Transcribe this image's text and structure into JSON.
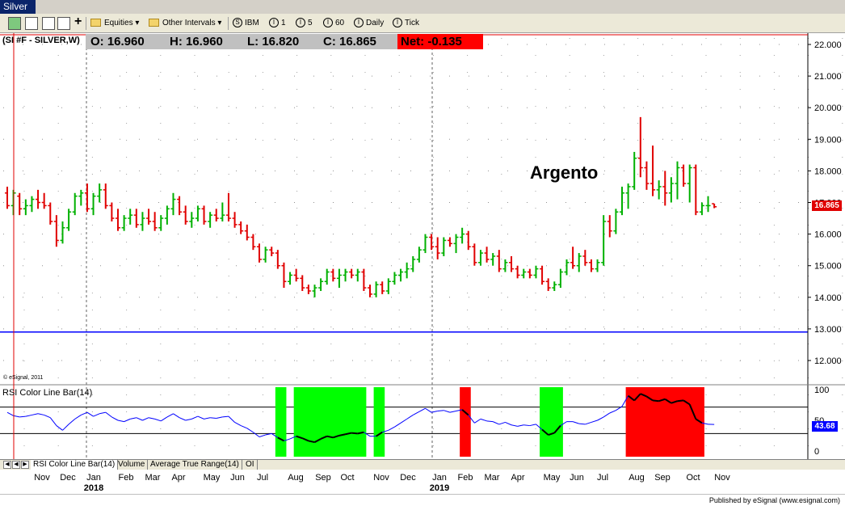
{
  "window": {
    "title": "Silver"
  },
  "toolbar": {
    "equities_label": "Equities",
    "other_intervals_label": "Other Intervals",
    "symbol_label": "IBM",
    "intervals": [
      "1",
      "5",
      "60",
      "Daily",
      "Tick"
    ]
  },
  "header": {
    "symbol": "(SI #F - SILVER,W)",
    "open": "O:  16.960",
    "high": "H:  16.960",
    "low": "L:  16.820",
    "close": "C:  16.865",
    "net": "Net:  -0.135"
  },
  "chart": {
    "annotation": "Argento",
    "copyright": "© eSignal, 2011",
    "last_price_label": "16.865",
    "y_ticks": [
      "22.000",
      "21.000",
      "20.000",
      "19.000",
      "18.000",
      "17.000",
      "16.000",
      "15.000",
      "14.000",
      "13.000",
      "12.000"
    ],
    "rsi_title": "RSI Color Line Bar(14)",
    "rsi_ticks": [
      "100",
      "50",
      "0"
    ],
    "rsi_value_label": "43.68",
    "colors": {
      "up": "#00b000",
      "down": "#e00000",
      "green_zone": "#00ff00",
      "red_zone": "#ff0000",
      "rsi_line": "#0000ff"
    }
  },
  "chart_data": [
    {
      "type": "ohlc",
      "title": "(SI #F - SILVER,W)",
      "ylim": [
        11.5,
        22.3
      ],
      "reference_line": 12.9,
      "bars": [
        [
          17.3,
          17.5,
          16.8,
          16.9
        ],
        [
          16.9,
          17.4,
          16.6,
          17.3
        ],
        [
          17.2,
          17.3,
          16.6,
          16.8
        ],
        [
          16.8,
          17.1,
          16.6,
          16.9
        ],
        [
          16.9,
          17.2,
          16.7,
          17.1
        ],
        [
          17.1,
          17.4,
          16.8,
          17.0
        ],
        [
          17.0,
          17.3,
          16.8,
          16.9
        ],
        [
          16.9,
          17.0,
          16.3,
          16.4
        ],
        [
          16.4,
          16.6,
          15.6,
          15.8
        ],
        [
          15.8,
          16.4,
          15.7,
          16.2
        ],
        [
          16.2,
          16.8,
          16.1,
          16.7
        ],
        [
          16.7,
          17.3,
          16.6,
          17.2
        ],
        [
          17.2,
          17.4,
          16.9,
          17.3
        ],
        [
          17.3,
          17.6,
          16.7,
          16.8
        ],
        [
          16.8,
          17.3,
          16.6,
          17.2
        ],
        [
          17.2,
          17.6,
          17.0,
          17.4
        ],
        [
          17.4,
          17.6,
          16.8,
          16.9
        ],
        [
          16.9,
          17.0,
          16.4,
          16.5
        ],
        [
          16.5,
          16.8,
          16.1,
          16.2
        ],
        [
          16.2,
          16.6,
          16.1,
          16.5
        ],
        [
          16.5,
          16.8,
          16.3,
          16.6
        ],
        [
          16.6,
          16.8,
          16.2,
          16.3
        ],
        [
          16.3,
          16.7,
          16.1,
          16.5
        ],
        [
          16.5,
          16.8,
          16.3,
          16.4
        ],
        [
          16.4,
          16.7,
          16.1,
          16.2
        ],
        [
          16.2,
          16.6,
          16.1,
          16.5
        ],
        [
          16.5,
          16.9,
          16.3,
          16.8
        ],
        [
          16.8,
          17.3,
          16.6,
          17.1
        ],
        [
          17.1,
          17.2,
          16.6,
          16.7
        ],
        [
          16.7,
          16.9,
          16.3,
          16.4
        ],
        [
          16.4,
          16.7,
          16.2,
          16.5
        ],
        [
          16.5,
          16.9,
          16.4,
          16.8
        ],
        [
          16.8,
          16.9,
          16.3,
          16.4
        ],
        [
          16.4,
          16.7,
          16.2,
          16.6
        ],
        [
          16.6,
          16.8,
          16.4,
          16.5
        ],
        [
          16.5,
          17.0,
          16.4,
          16.6
        ],
        [
          16.6,
          17.3,
          16.4,
          16.5
        ],
        [
          16.5,
          16.7,
          16.2,
          16.3
        ],
        [
          16.3,
          16.4,
          16.0,
          16.1
        ],
        [
          16.1,
          16.3,
          15.8,
          15.9
        ],
        [
          15.9,
          16.0,
          15.5,
          15.6
        ],
        [
          15.6,
          15.7,
          15.1,
          15.2
        ],
        [
          15.2,
          15.6,
          15.1,
          15.5
        ],
        [
          15.5,
          15.6,
          15.3,
          15.4
        ],
        [
          15.4,
          15.5,
          14.9,
          15.0
        ],
        [
          15.0,
          15.1,
          14.3,
          14.5
        ],
        [
          14.5,
          14.8,
          14.4,
          14.7
        ],
        [
          14.7,
          14.9,
          14.5,
          14.6
        ],
        [
          14.6,
          14.7,
          14.2,
          14.3
        ],
        [
          14.3,
          14.4,
          14.1,
          14.2
        ],
        [
          14.2,
          14.4,
          14.0,
          14.3
        ],
        [
          14.3,
          14.6,
          14.2,
          14.5
        ],
        [
          14.5,
          14.9,
          14.4,
          14.8
        ],
        [
          14.8,
          14.9,
          14.5,
          14.6
        ],
        [
          14.6,
          14.9,
          14.3,
          14.7
        ],
        [
          14.7,
          14.9,
          14.5,
          14.8
        ],
        [
          14.8,
          14.9,
          14.6,
          14.7
        ],
        [
          14.7,
          14.9,
          14.5,
          14.8
        ],
        [
          14.8,
          14.9,
          14.2,
          14.3
        ],
        [
          14.3,
          14.4,
          14.0,
          14.1
        ],
        [
          14.1,
          14.5,
          14.0,
          14.4
        ],
        [
          14.4,
          14.5,
          14.1,
          14.2
        ],
        [
          14.2,
          14.6,
          14.1,
          14.5
        ],
        [
          14.5,
          14.8,
          14.4,
          14.7
        ],
        [
          14.7,
          14.9,
          14.5,
          14.8
        ],
        [
          14.8,
          15.1,
          14.6,
          14.9
        ],
        [
          14.9,
          15.3,
          14.8,
          15.2
        ],
        [
          15.2,
          15.6,
          15.1,
          15.5
        ],
        [
          15.5,
          16.0,
          15.4,
          15.9
        ],
        [
          15.9,
          16.0,
          15.5,
          15.6
        ],
        [
          15.6,
          15.9,
          15.2,
          15.4
        ],
        [
          15.4,
          15.9,
          15.3,
          15.8
        ],
        [
          15.8,
          15.9,
          15.6,
          15.7
        ],
        [
          15.7,
          16.0,
          15.4,
          15.9
        ],
        [
          15.9,
          16.2,
          15.7,
          16.0
        ],
        [
          16.0,
          16.1,
          15.5,
          15.6
        ],
        [
          15.6,
          15.7,
          15.0,
          15.1
        ],
        [
          15.1,
          15.5,
          15.0,
          15.4
        ],
        [
          15.4,
          15.6,
          15.1,
          15.2
        ],
        [
          15.2,
          15.4,
          15.0,
          15.3
        ],
        [
          15.3,
          15.5,
          14.8,
          14.9
        ],
        [
          14.9,
          15.2,
          14.8,
          15.1
        ],
        [
          15.1,
          15.3,
          14.8,
          14.9
        ],
        [
          14.9,
          15.0,
          14.6,
          14.7
        ],
        [
          14.7,
          14.9,
          14.6,
          14.8
        ],
        [
          14.8,
          14.9,
          14.6,
          14.7
        ],
        [
          14.7,
          15.0,
          14.6,
          14.9
        ],
        [
          14.9,
          15.0,
          14.4,
          14.5
        ],
        [
          14.5,
          14.6,
          14.2,
          14.3
        ],
        [
          14.3,
          14.5,
          14.2,
          14.4
        ],
        [
          14.4,
          14.9,
          14.3,
          14.8
        ],
        [
          14.8,
          15.2,
          14.7,
          15.1
        ],
        [
          15.1,
          15.6,
          14.9,
          15.0
        ],
        [
          15.0,
          15.4,
          14.8,
          15.3
        ],
        [
          15.3,
          15.5,
          15.0,
          15.1
        ],
        [
          15.1,
          15.2,
          14.8,
          14.9
        ],
        [
          14.9,
          15.2,
          14.8,
          15.1
        ],
        [
          15.1,
          16.6,
          15.0,
          16.4
        ],
        [
          16.4,
          16.6,
          15.9,
          16.1
        ],
        [
          16.1,
          16.8,
          16.0,
          16.7
        ],
        [
          16.7,
          17.5,
          16.6,
          17.3
        ],
        [
          17.3,
          17.6,
          16.8,
          17.5
        ],
        [
          17.5,
          18.6,
          17.4,
          18.4
        ],
        [
          18.4,
          19.7,
          17.8,
          18.1
        ],
        [
          18.1,
          18.3,
          17.4,
          17.6
        ],
        [
          17.6,
          18.8,
          17.2,
          17.4
        ],
        [
          17.4,
          17.7,
          17.1,
          17.5
        ],
        [
          17.5,
          18.0,
          16.9,
          17.3
        ],
        [
          17.3,
          17.8,
          17.0,
          17.6
        ],
        [
          17.6,
          18.3,
          17.1,
          18.1
        ],
        [
          18.1,
          18.2,
          17.5,
          17.6
        ],
        [
          17.6,
          18.2,
          17.0,
          18.1
        ],
        [
          18.1,
          18.2,
          16.6,
          16.7
        ],
        [
          16.7,
          17.0,
          16.6,
          16.9
        ],
        [
          16.9,
          17.2,
          16.7,
          16.9
        ],
        [
          16.96,
          16.96,
          16.82,
          16.865
        ]
      ]
    },
    {
      "type": "line",
      "title": "RSI Color Line Bar(14)",
      "ylim": [
        0,
        100
      ],
      "thresholds": [
        70,
        30
      ],
      "values": [
        62,
        57,
        55,
        56,
        58,
        60,
        58,
        54,
        42,
        35,
        44,
        52,
        58,
        62,
        56,
        60,
        62,
        55,
        50,
        48,
        52,
        54,
        50,
        54,
        52,
        49,
        55,
        60,
        54,
        50,
        52,
        56,
        52,
        54,
        53,
        55,
        56,
        47,
        42,
        38,
        32,
        25,
        28,
        30,
        24,
        19,
        22,
        26,
        23,
        19,
        17,
        22,
        26,
        24,
        27,
        29,
        31,
        30,
        32,
        26,
        26,
        32,
        35,
        40,
        46,
        52,
        58,
        63,
        68,
        62,
        64,
        65,
        62,
        64,
        66,
        58,
        46,
        52,
        49,
        48,
        44,
        47,
        43,
        41,
        43,
        42,
        44,
        36,
        28,
        31,
        42,
        48,
        48,
        45,
        44,
        47,
        50,
        55,
        61,
        65,
        71,
        87,
        80,
        90,
        86,
        80,
        79,
        82,
        76,
        79,
        80,
        74,
        52,
        46,
        44,
        43.68
      ],
      "zones": [
        {
          "color": "green",
          "start": 44,
          "end": 45
        },
        {
          "color": "green",
          "start": 47,
          "end": 58
        },
        {
          "color": "green",
          "start": 60,
          "end": 61
        },
        {
          "color": "red",
          "start": 74,
          "end": 75
        },
        {
          "color": "green",
          "start": 87,
          "end": 90
        },
        {
          "color": "red",
          "start": 101,
          "end": 113
        }
      ]
    }
  ],
  "x_axis": {
    "months": [
      "Nov",
      "Dec",
      "Jan",
      "Feb",
      "Mar",
      "Apr",
      "May",
      "Jun",
      "Jul",
      "Aug",
      "Sep",
      "Oct",
      "Nov",
      "Dec",
      "Jan",
      "Feb",
      "Mar",
      "Apr",
      "May",
      "Jun",
      "Jul",
      "Aug",
      "Sep",
      "Oct",
      "Nov"
    ],
    "years": [
      "2018",
      "2019"
    ]
  },
  "tabs": [
    "RSI Color Line Bar(14)",
    "Volume",
    "Average True Range(14)",
    "OI"
  ],
  "footer": {
    "published": "Published by eSignal (www.esignal.com)"
  }
}
